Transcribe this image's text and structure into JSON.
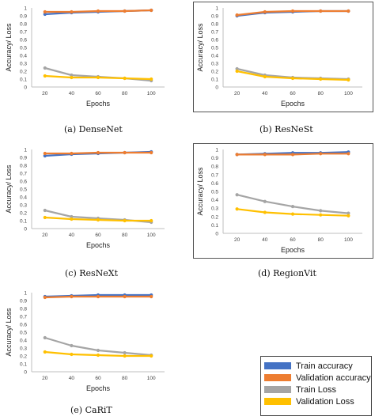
{
  "chart_data": [
    {
      "type": "line",
      "caption": "(a) DenseNet",
      "xlabel": "Epochs",
      "ylabel": "Accuracy/ Loss",
      "x": [
        20,
        40,
        60,
        80,
        100
      ],
      "ylim": [
        0,
        1
      ],
      "yticks": [
        "0",
        "0.1",
        "0.2",
        "0.3",
        "0.4",
        "0.5",
        "0.6",
        "0.7",
        "0.8",
        "0.9",
        "1"
      ],
      "series": [
        {
          "name": "Train accuracy",
          "color": "#4472c4",
          "values": [
            0.92,
            0.94,
            0.95,
            0.96,
            0.97
          ]
        },
        {
          "name": "Validation accuracy",
          "color": "#ed7d31",
          "values": [
            0.95,
            0.95,
            0.96,
            0.96,
            0.97
          ]
        },
        {
          "name": "Train Loss",
          "color": "#a5a5a5",
          "values": [
            0.24,
            0.15,
            0.13,
            0.11,
            0.08
          ]
        },
        {
          "name": "Validation Loss",
          "color": "#ffc000",
          "values": [
            0.14,
            0.12,
            0.12,
            0.11,
            0.1
          ]
        }
      ]
    },
    {
      "type": "line",
      "caption": "(b) ResNeSt",
      "xlabel": "Epochs",
      "ylabel": "Accuracy/ Loss",
      "x": [
        20,
        40,
        60,
        80,
        100
      ],
      "ylim": [
        0,
        1
      ],
      "yticks": [
        "0",
        "0.1",
        "0.2",
        "0.3",
        "0.4",
        "0.5",
        "0.6",
        "0.7",
        "0.8",
        "0.9",
        "1"
      ],
      "series": [
        {
          "name": "Train accuracy",
          "color": "#4472c4",
          "values": [
            0.9,
            0.94,
            0.95,
            0.96,
            0.96
          ]
        },
        {
          "name": "Validation accuracy",
          "color": "#ed7d31",
          "values": [
            0.91,
            0.95,
            0.96,
            0.96,
            0.96
          ]
        },
        {
          "name": "Train Loss",
          "color": "#a5a5a5",
          "values": [
            0.23,
            0.15,
            0.12,
            0.11,
            0.1
          ]
        },
        {
          "name": "Validation Loss",
          "color": "#ffc000",
          "values": [
            0.2,
            0.13,
            0.11,
            0.1,
            0.09
          ]
        }
      ]
    },
    {
      "type": "line",
      "caption": "(c) ResNeXt",
      "xlabel": "Epochs",
      "ylabel": "Accuracy/ Loss",
      "x": [
        20,
        40,
        60,
        80,
        100
      ],
      "ylim": [
        0,
        1
      ],
      "yticks": [
        "0",
        "0.1",
        "0.2",
        "0.3",
        "0.4",
        "0.5",
        "0.6",
        "0.7",
        "0.8",
        "0.9",
        "1"
      ],
      "series": [
        {
          "name": "Train accuracy",
          "color": "#4472c4",
          "values": [
            0.92,
            0.94,
            0.95,
            0.96,
            0.97
          ]
        },
        {
          "name": "Validation accuracy",
          "color": "#ed7d31",
          "values": [
            0.95,
            0.95,
            0.96,
            0.96,
            0.96
          ]
        },
        {
          "name": "Train Loss",
          "color": "#a5a5a5",
          "values": [
            0.23,
            0.15,
            0.13,
            0.11,
            0.08
          ]
        },
        {
          "name": "Validation Loss",
          "color": "#ffc000",
          "values": [
            0.14,
            0.12,
            0.11,
            0.1,
            0.1
          ]
        }
      ]
    },
    {
      "type": "line",
      "caption": "(d) RegionVit",
      "xlabel": "Epochs",
      "ylabel": "Accuracy/ Loss",
      "x": [
        20,
        40,
        60,
        80,
        100
      ],
      "ylim": [
        0,
        1
      ],
      "yticks": [
        "0",
        "0.1",
        "0.2",
        "0.3",
        "0.4",
        "0.5",
        "0.6",
        "0.7",
        "0.8",
        "0.9",
        "1"
      ],
      "series": [
        {
          "name": "Train accuracy",
          "color": "#4472c4",
          "values": [
            0.94,
            0.95,
            0.96,
            0.96,
            0.97
          ]
        },
        {
          "name": "Validation accuracy",
          "color": "#ed7d31",
          "values": [
            0.94,
            0.94,
            0.94,
            0.95,
            0.95
          ]
        },
        {
          "name": "Train Loss",
          "color": "#a5a5a5",
          "values": [
            0.46,
            0.38,
            0.32,
            0.27,
            0.24
          ]
        },
        {
          "name": "Validation Loss",
          "color": "#ffc000",
          "values": [
            0.29,
            0.25,
            0.23,
            0.22,
            0.21
          ]
        }
      ]
    },
    {
      "type": "line",
      "caption": "(e) CaRiT",
      "xlabel": "Epochs",
      "ylabel": "Accuracy/ Loss",
      "x": [
        20,
        40,
        60,
        80,
        100
      ],
      "ylim": [
        0,
        1
      ],
      "yticks": [
        "0",
        "0.1",
        "0.2",
        "0.3",
        "0.4",
        "0.5",
        "0.6",
        "0.7",
        "0.8",
        "0.9",
        "1"
      ],
      "series": [
        {
          "name": "Train accuracy",
          "color": "#4472c4",
          "values": [
            0.95,
            0.96,
            0.97,
            0.97,
            0.97
          ]
        },
        {
          "name": "Validation accuracy",
          "color": "#ed7d31",
          "values": [
            0.94,
            0.95,
            0.95,
            0.95,
            0.95
          ]
        },
        {
          "name": "Train Loss",
          "color": "#a5a5a5",
          "values": [
            0.43,
            0.33,
            0.27,
            0.24,
            0.21
          ]
        },
        {
          "name": "Validation Loss",
          "color": "#ffc000",
          "values": [
            0.25,
            0.22,
            0.21,
            0.2,
            0.2
          ]
        }
      ]
    }
  ],
  "legend": {
    "items": [
      {
        "label": "Train accuracy",
        "color": "#4472c4"
      },
      {
        "label": "Validation accuracy",
        "color": "#ed7d31"
      },
      {
        "label": "Train Loss",
        "color": "#a5a5a5"
      },
      {
        "label": "Validation Loss",
        "color": "#ffc000"
      }
    ]
  }
}
